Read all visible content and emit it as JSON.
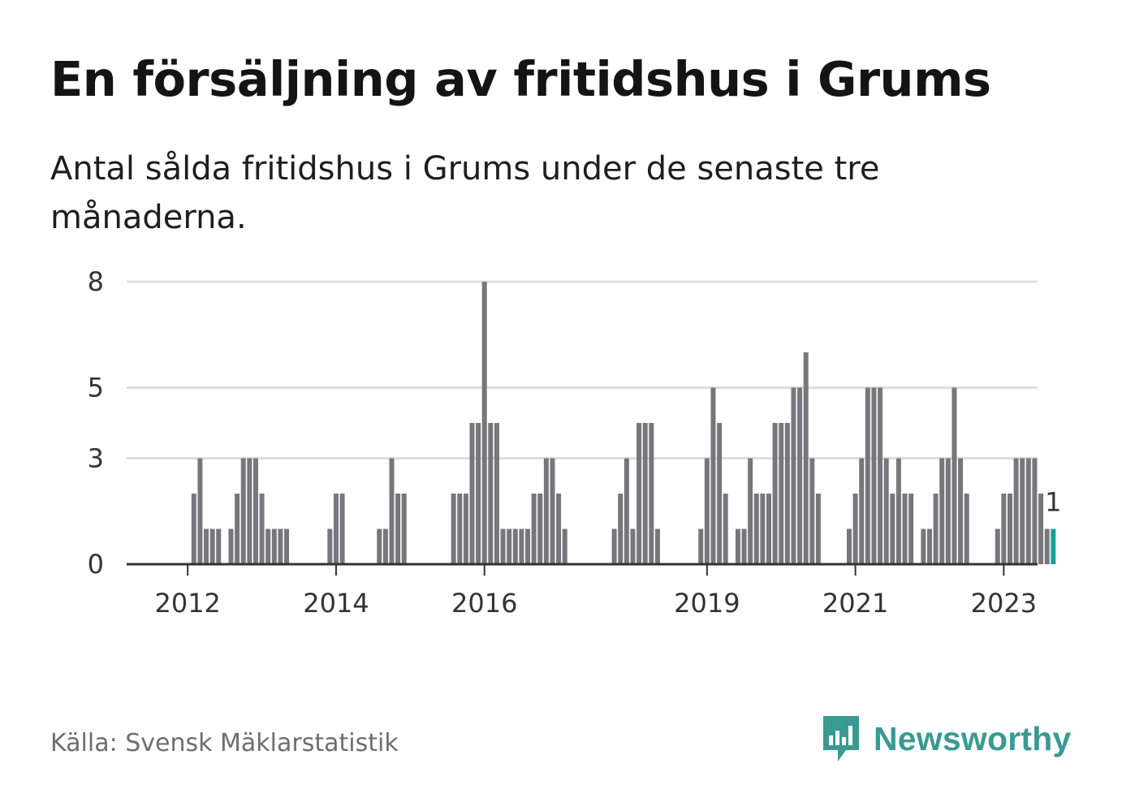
{
  "header": {
    "title": "En försäljning av fritidshus i Grums",
    "subtitle": "Antal sålda fritidshus i Grums under de senaste tre månaderna."
  },
  "footer": {
    "source": "Källa: Svensk Mäklarstatistik",
    "logo_text": "Newsworthy"
  },
  "colors": {
    "bar": "#77767b",
    "highlight": "#16a096",
    "grid": "#dddddd",
    "axis": "#333333",
    "logo": "#3a9a92"
  },
  "chart_data": {
    "type": "bar",
    "title": "En försäljning av fritidshus i Grums",
    "subtitle": "Antal sålda fritidshus i Grums under de senaste tre månaderna.",
    "xlabel": "",
    "ylabel": "",
    "ylim": [
      0,
      9
    ],
    "yticks": [
      {
        "value": 0,
        "label": "0"
      },
      {
        "value": 3,
        "label": "3"
      },
      {
        "value": 5,
        "label": "5"
      },
      {
        "value": 8,
        "label": "8"
      }
    ],
    "x_tick_labels": [
      {
        "label": "2012",
        "year": 2012
      },
      {
        "label": "2014",
        "year": 2014
      },
      {
        "label": "2016",
        "year": 2016
      },
      {
        "label": "2019",
        "year": 2019
      },
      {
        "label": "2021",
        "year": 2021
      },
      {
        "label": "2023",
        "year": 2023
      }
    ],
    "x_start": "2011-07",
    "x_end": "2023-08",
    "grid": true,
    "highlight_last": true,
    "last_value_label": "1",
    "series": [
      {
        "values": [
          0,
          0,
          0,
          0,
          0,
          0,
          0,
          2,
          3,
          1,
          1,
          1,
          0,
          1,
          2,
          3,
          3,
          3,
          2,
          1,
          1,
          1,
          1,
          0,
          0,
          0,
          0,
          0,
          0,
          1,
          2,
          2,
          0,
          0,
          0,
          0,
          0,
          1,
          1,
          3,
          2,
          2,
          0,
          0,
          0,
          0,
          0,
          0,
          0,
          2,
          2,
          2,
          4,
          4,
          8,
          4,
          4,
          1,
          1,
          1,
          1,
          1,
          2,
          2,
          3,
          3,
          2,
          1,
          0,
          0,
          0,
          0,
          0,
          0,
          0,
          1,
          2,
          3,
          1,
          4,
          4,
          4,
          1,
          0,
          0,
          0,
          0,
          0,
          0,
          1,
          3,
          5,
          4,
          2,
          0,
          1,
          1,
          3,
          2,
          2,
          2,
          4,
          4,
          4,
          5,
          5,
          6,
          3,
          2,
          0,
          0,
          0,
          0,
          1,
          2,
          3,
          5,
          5,
          5,
          3,
          2,
          3,
          2,
          2,
          0,
          1,
          1,
          2,
          3,
          3,
          5,
          3,
          2,
          0,
          0,
          0,
          0,
          1,
          2,
          2,
          3,
          3,
          3,
          3,
          2,
          1,
          1
        ]
      }
    ]
  }
}
